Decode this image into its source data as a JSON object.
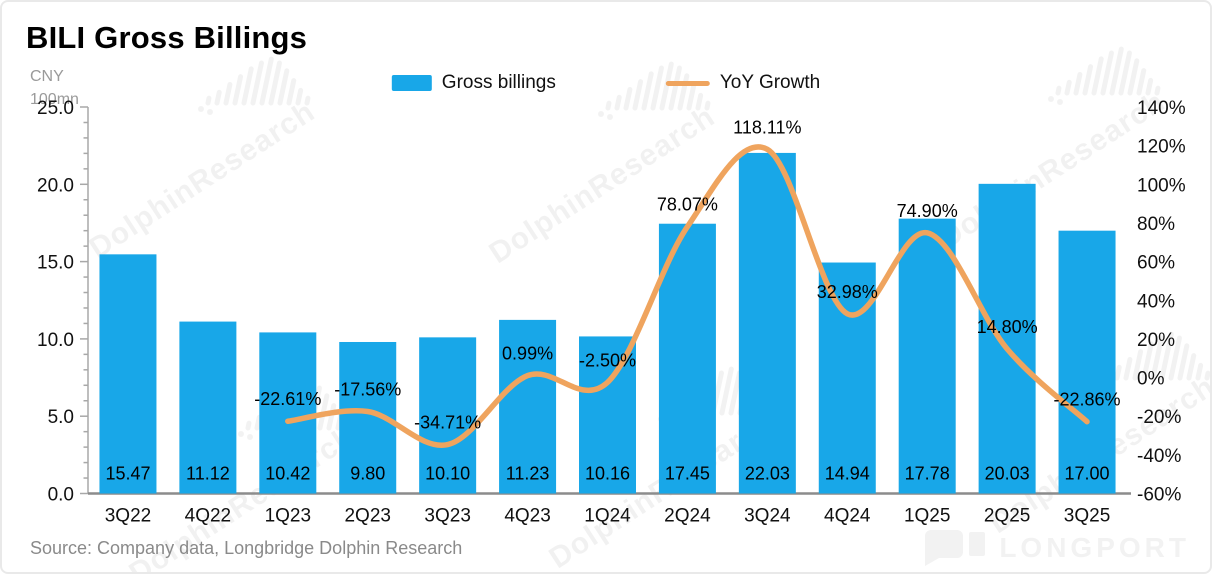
{
  "card": {
    "title": "BILI Gross Billings",
    "unit_line1": "CNY",
    "unit_line2": "100mn",
    "source": "Source: Company data, Longbridge Dolphin Research"
  },
  "legend": [
    {
      "label": "Gross billings",
      "type": "bar"
    },
    {
      "label": "YoY Growth",
      "type": "line"
    }
  ],
  "colors": {
    "bar": "#18A7E8",
    "line": "#EFA45E",
    "axis_line": "#8c8c8c",
    "tick": "#8c8c8c",
    "label_text": "#111111",
    "muted_text": "#9a9a9a",
    "watermark": "rgba(0,0,0,0.055)"
  },
  "watermark": {
    "text": "DolphinResearch"
  },
  "footer_logo": {
    "text": "LONGPORT",
    "icon": "speech-bubble-icon"
  },
  "chart_data": {
    "type": "bar+line",
    "title": "BILI Gross Billings",
    "unit": "CNY 100mn",
    "grid": false,
    "legend_position": "top-center",
    "categories": [
      "3Q22",
      "4Q22",
      "1Q23",
      "2Q23",
      "3Q23",
      "4Q23",
      "1Q24",
      "2Q24",
      "3Q24",
      "4Q24",
      "1Q25",
      "2Q25",
      "3Q25"
    ],
    "series": [
      {
        "name": "Gross billings",
        "type": "bar",
        "axis": "left",
        "values": [
          15.47,
          11.12,
          10.42,
          9.8,
          10.1,
          11.23,
          10.16,
          17.45,
          22.03,
          14.94,
          17.78,
          20.03,
          17.0
        ],
        "labels": [
          "15.47",
          "11.12",
          "10.42",
          "9.80",
          "10.10",
          "11.23",
          "10.16",
          "17.45",
          "22.03",
          "14.94",
          "17.78",
          "20.03",
          "17.00"
        ]
      },
      {
        "name": "YoY Growth",
        "type": "line",
        "axis": "right",
        "values": [
          null,
          null,
          -22.61,
          -17.56,
          -34.71,
          0.99,
          -2.5,
          78.07,
          118.11,
          32.98,
          74.9,
          14.8,
          -22.86
        ],
        "labels": [
          null,
          null,
          "-22.61%",
          "-17.56%",
          "-34.71%",
          "0.99%",
          "-2.50%",
          "78.07%",
          "118.11%",
          "32.98%",
          "74.90%",
          "14.80%",
          "-22.86%"
        ]
      }
    ],
    "left_axis": {
      "min": 0,
      "max": 25,
      "major_step": 5,
      "minor_step": 1,
      "tick_labels": [
        "0.0",
        "5.0",
        "10.0",
        "15.0",
        "20.0",
        "25.0"
      ]
    },
    "right_axis": {
      "min": -60,
      "max": 140,
      "major_step": 20,
      "tick_labels": [
        "-60%",
        "-40%",
        "-20%",
        "0%",
        "20%",
        "40%",
        "60%",
        "80%",
        "100%",
        "120%",
        "140%"
      ]
    }
  }
}
